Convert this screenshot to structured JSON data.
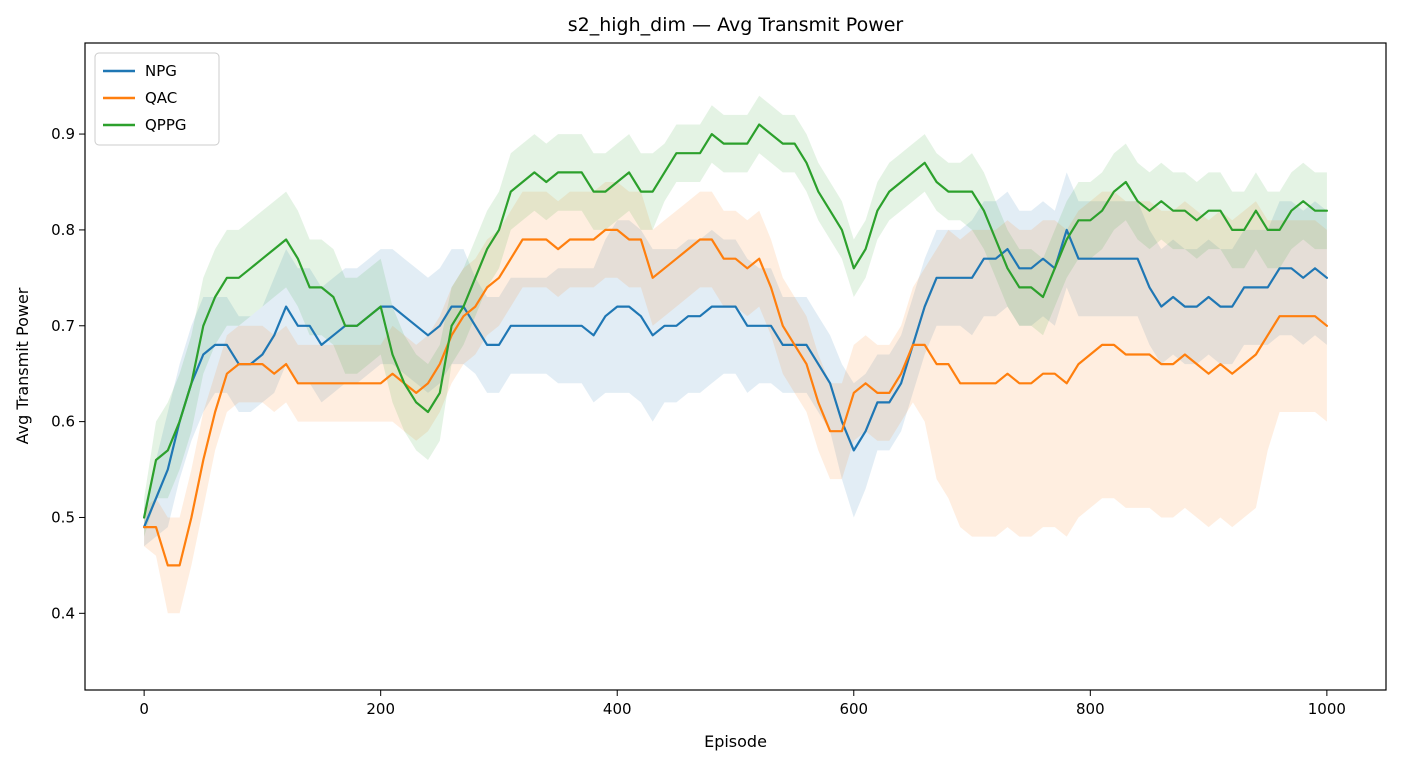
{
  "chart_data": {
    "type": "line",
    "title": "s2_high_dim — Avg Transmit Power",
    "xlabel": "Episode",
    "ylabel": "Avg Transmit Power",
    "xlim": [
      -50,
      1050
    ],
    "ylim": [
      0.32,
      0.995
    ],
    "xticks": [
      0,
      200,
      400,
      600,
      800,
      1000
    ],
    "yticks": [
      0.4,
      0.5,
      0.6,
      0.7,
      0.8,
      0.9
    ],
    "grid": false,
    "legend_position": "top-left",
    "shaded_band": true,
    "series": [
      {
        "name": "NPG",
        "color": "#1f77b4",
        "x": [
          0,
          10,
          20,
          30,
          40,
          50,
          60,
          70,
          80,
          90,
          100,
          110,
          120,
          130,
          140,
          150,
          160,
          170,
          180,
          190,
          200,
          210,
          220,
          230,
          240,
          250,
          260,
          270,
          280,
          290,
          300,
          310,
          320,
          330,
          340,
          350,
          360,
          370,
          380,
          390,
          400,
          410,
          420,
          430,
          440,
          450,
          460,
          470,
          480,
          490,
          500,
          510,
          520,
          530,
          540,
          550,
          560,
          570,
          580,
          590,
          600,
          610,
          620,
          630,
          640,
          650,
          660,
          670,
          680,
          690,
          700,
          710,
          720,
          730,
          740,
          750,
          760,
          770,
          780,
          790,
          800,
          810,
          820,
          830,
          840,
          850,
          860,
          870,
          880,
          890,
          900,
          910,
          920,
          930,
          940,
          950,
          960,
          970,
          980,
          990,
          1000
        ],
        "y": [
          0.49,
          0.52,
          0.55,
          0.6,
          0.64,
          0.67,
          0.68,
          0.68,
          0.66,
          0.66,
          0.67,
          0.69,
          0.72,
          0.7,
          0.7,
          0.68,
          0.69,
          0.7,
          0.7,
          0.71,
          0.72,
          0.72,
          0.71,
          0.7,
          0.69,
          0.7,
          0.72,
          0.72,
          0.7,
          0.68,
          0.68,
          0.7,
          0.7,
          0.7,
          0.7,
          0.7,
          0.7,
          0.7,
          0.69,
          0.71,
          0.72,
          0.72,
          0.71,
          0.69,
          0.7,
          0.7,
          0.71,
          0.71,
          0.72,
          0.72,
          0.72,
          0.7,
          0.7,
          0.7,
          0.68,
          0.68,
          0.68,
          0.66,
          0.64,
          0.6,
          0.57,
          0.59,
          0.62,
          0.62,
          0.64,
          0.68,
          0.72,
          0.75,
          0.75,
          0.75,
          0.75,
          0.77,
          0.77,
          0.78,
          0.76,
          0.76,
          0.77,
          0.76,
          0.8,
          0.77,
          0.77,
          0.77,
          0.77,
          0.77,
          0.77,
          0.74,
          0.72,
          0.73,
          0.72,
          0.72,
          0.73,
          0.72,
          0.72,
          0.74,
          0.74,
          0.74,
          0.76,
          0.76,
          0.75,
          0.76,
          0.75
        ],
        "spread": [
          0.02,
          0.04,
          0.06,
          0.06,
          0.06,
          0.06,
          0.05,
          0.05,
          0.05,
          0.05,
          0.05,
          0.06,
          0.06,
          0.06,
          0.06,
          0.06,
          0.06,
          0.06,
          0.06,
          0.06,
          0.06,
          0.06,
          0.06,
          0.06,
          0.06,
          0.06,
          0.06,
          0.06,
          0.05,
          0.05,
          0.05,
          0.05,
          0.05,
          0.05,
          0.05,
          0.06,
          0.06,
          0.06,
          0.07,
          0.08,
          0.09,
          0.09,
          0.09,
          0.09,
          0.08,
          0.08,
          0.08,
          0.08,
          0.08,
          0.07,
          0.07,
          0.07,
          0.06,
          0.06,
          0.05,
          0.05,
          0.05,
          0.05,
          0.05,
          0.06,
          0.07,
          0.06,
          0.05,
          0.05,
          0.05,
          0.05,
          0.05,
          0.05,
          0.05,
          0.05,
          0.06,
          0.06,
          0.06,
          0.06,
          0.06,
          0.06,
          0.06,
          0.06,
          0.06,
          0.06,
          0.06,
          0.06,
          0.06,
          0.06,
          0.06,
          0.06,
          0.06,
          0.06,
          0.06,
          0.06,
          0.06,
          0.06,
          0.06,
          0.06,
          0.06,
          0.06,
          0.07,
          0.07,
          0.07,
          0.07,
          0.07
        ]
      },
      {
        "name": "QAC",
        "color": "#ff7f0e",
        "x": [
          0,
          10,
          20,
          30,
          40,
          50,
          60,
          70,
          80,
          90,
          100,
          110,
          120,
          130,
          140,
          150,
          160,
          170,
          180,
          190,
          200,
          210,
          220,
          230,
          240,
          250,
          260,
          270,
          280,
          290,
          300,
          310,
          320,
          330,
          340,
          350,
          360,
          370,
          380,
          390,
          400,
          410,
          420,
          430,
          440,
          450,
          460,
          470,
          480,
          490,
          500,
          510,
          520,
          530,
          540,
          550,
          560,
          570,
          580,
          590,
          600,
          610,
          620,
          630,
          640,
          650,
          660,
          670,
          680,
          690,
          700,
          710,
          720,
          730,
          740,
          750,
          760,
          770,
          780,
          790,
          800,
          810,
          820,
          830,
          840,
          850,
          860,
          870,
          880,
          890,
          900,
          910,
          920,
          930,
          940,
          950,
          960,
          970,
          980,
          990,
          1000
        ],
        "y": [
          0.49,
          0.49,
          0.45,
          0.45,
          0.5,
          0.56,
          0.61,
          0.65,
          0.66,
          0.66,
          0.66,
          0.65,
          0.66,
          0.64,
          0.64,
          0.64,
          0.64,
          0.64,
          0.64,
          0.64,
          0.64,
          0.65,
          0.64,
          0.63,
          0.64,
          0.66,
          0.69,
          0.71,
          0.72,
          0.74,
          0.75,
          0.77,
          0.79,
          0.79,
          0.79,
          0.78,
          0.79,
          0.79,
          0.79,
          0.8,
          0.8,
          0.79,
          0.79,
          0.75,
          0.76,
          0.77,
          0.78,
          0.79,
          0.79,
          0.77,
          0.77,
          0.76,
          0.77,
          0.74,
          0.7,
          0.68,
          0.66,
          0.62,
          0.59,
          0.59,
          0.63,
          0.64,
          0.63,
          0.63,
          0.65,
          0.68,
          0.68,
          0.66,
          0.66,
          0.64,
          0.64,
          0.64,
          0.64,
          0.65,
          0.64,
          0.64,
          0.65,
          0.65,
          0.64,
          0.66,
          0.67,
          0.68,
          0.68,
          0.67,
          0.67,
          0.67,
          0.66,
          0.66,
          0.67,
          0.66,
          0.65,
          0.66,
          0.65,
          0.66,
          0.67,
          0.69,
          0.71,
          0.71,
          0.71,
          0.71,
          0.7
        ],
        "spread": [
          0.02,
          0.03,
          0.05,
          0.05,
          0.05,
          0.05,
          0.04,
          0.04,
          0.04,
          0.04,
          0.04,
          0.04,
          0.04,
          0.04,
          0.04,
          0.04,
          0.04,
          0.04,
          0.04,
          0.04,
          0.04,
          0.05,
          0.05,
          0.05,
          0.05,
          0.05,
          0.05,
          0.05,
          0.05,
          0.05,
          0.05,
          0.05,
          0.05,
          0.05,
          0.05,
          0.05,
          0.05,
          0.05,
          0.05,
          0.05,
          0.05,
          0.05,
          0.05,
          0.05,
          0.05,
          0.05,
          0.05,
          0.05,
          0.05,
          0.05,
          0.05,
          0.05,
          0.05,
          0.05,
          0.05,
          0.05,
          0.05,
          0.05,
          0.05,
          0.05,
          0.05,
          0.05,
          0.05,
          0.05,
          0.05,
          0.06,
          0.08,
          0.12,
          0.14,
          0.15,
          0.16,
          0.16,
          0.16,
          0.16,
          0.16,
          0.16,
          0.16,
          0.16,
          0.16,
          0.16,
          0.16,
          0.16,
          0.16,
          0.16,
          0.16,
          0.16,
          0.16,
          0.16,
          0.16,
          0.16,
          0.16,
          0.16,
          0.16,
          0.16,
          0.16,
          0.12,
          0.1,
          0.1,
          0.1,
          0.1,
          0.1
        ]
      },
      {
        "name": "QPPG",
        "color": "#2ca02c",
        "x": [
          0,
          10,
          20,
          30,
          40,
          50,
          60,
          70,
          80,
          90,
          100,
          110,
          120,
          130,
          140,
          150,
          160,
          170,
          180,
          190,
          200,
          210,
          220,
          230,
          240,
          250,
          260,
          270,
          280,
          290,
          300,
          310,
          320,
          330,
          340,
          350,
          360,
          370,
          380,
          390,
          400,
          410,
          420,
          430,
          440,
          450,
          460,
          470,
          480,
          490,
          500,
          510,
          520,
          530,
          540,
          550,
          560,
          570,
          580,
          590,
          600,
          610,
          620,
          630,
          640,
          650,
          660,
          670,
          680,
          690,
          700,
          710,
          720,
          730,
          740,
          750,
          760,
          770,
          780,
          790,
          800,
          810,
          820,
          830,
          840,
          850,
          860,
          870,
          880,
          890,
          900,
          910,
          920,
          930,
          940,
          950,
          960,
          970,
          980,
          990,
          1000
        ],
        "y": [
          0.5,
          0.56,
          0.57,
          0.6,
          0.64,
          0.7,
          0.73,
          0.75,
          0.75,
          0.76,
          0.77,
          0.78,
          0.79,
          0.77,
          0.74,
          0.74,
          0.73,
          0.7,
          0.7,
          0.71,
          0.72,
          0.67,
          0.64,
          0.62,
          0.61,
          0.63,
          0.7,
          0.72,
          0.75,
          0.78,
          0.8,
          0.84,
          0.85,
          0.86,
          0.85,
          0.86,
          0.86,
          0.86,
          0.84,
          0.84,
          0.85,
          0.86,
          0.84,
          0.84,
          0.86,
          0.88,
          0.88,
          0.88,
          0.9,
          0.89,
          0.89,
          0.89,
          0.91,
          0.9,
          0.89,
          0.89,
          0.87,
          0.84,
          0.82,
          0.8,
          0.76,
          0.78,
          0.82,
          0.84,
          0.85,
          0.86,
          0.87,
          0.85,
          0.84,
          0.84,
          0.84,
          0.82,
          0.79,
          0.76,
          0.74,
          0.74,
          0.73,
          0.76,
          0.79,
          0.81,
          0.81,
          0.82,
          0.84,
          0.85,
          0.83,
          0.82,
          0.83,
          0.82,
          0.82,
          0.81,
          0.82,
          0.82,
          0.8,
          0.8,
          0.82,
          0.8,
          0.8,
          0.82,
          0.83,
          0.82,
          0.82
        ],
        "spread": [
          0.02,
          0.04,
          0.05,
          0.05,
          0.05,
          0.05,
          0.05,
          0.05,
          0.05,
          0.05,
          0.05,
          0.05,
          0.05,
          0.05,
          0.05,
          0.05,
          0.05,
          0.05,
          0.05,
          0.05,
          0.05,
          0.05,
          0.05,
          0.05,
          0.05,
          0.05,
          0.04,
          0.04,
          0.04,
          0.04,
          0.04,
          0.04,
          0.04,
          0.04,
          0.04,
          0.04,
          0.04,
          0.04,
          0.04,
          0.04,
          0.04,
          0.04,
          0.04,
          0.04,
          0.03,
          0.03,
          0.03,
          0.03,
          0.03,
          0.03,
          0.03,
          0.03,
          0.03,
          0.03,
          0.03,
          0.03,
          0.03,
          0.03,
          0.03,
          0.03,
          0.03,
          0.03,
          0.03,
          0.03,
          0.03,
          0.03,
          0.03,
          0.03,
          0.03,
          0.03,
          0.04,
          0.04,
          0.04,
          0.04,
          0.04,
          0.04,
          0.04,
          0.04,
          0.04,
          0.04,
          0.04,
          0.04,
          0.04,
          0.04,
          0.04,
          0.04,
          0.04,
          0.04,
          0.04,
          0.04,
          0.04,
          0.04,
          0.04,
          0.04,
          0.04,
          0.04,
          0.04,
          0.04,
          0.04,
          0.04,
          0.04
        ]
      }
    ]
  }
}
